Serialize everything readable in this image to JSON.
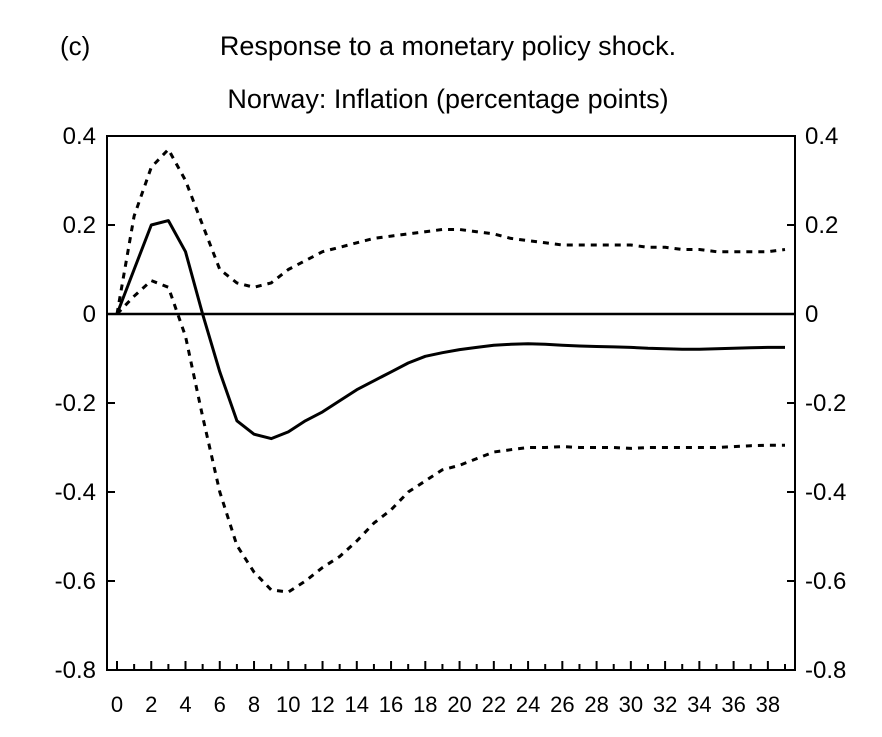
{
  "chart_data": {
    "type": "line",
    "panel_label": "(c)",
    "title": "Response to a monetary policy shock.",
    "subtitle": "Norway: Inflation (percentage points)",
    "xlabel": "",
    "ylabel": "",
    "xlim": [
      0,
      39
    ],
    "ylim": [
      -0.8,
      0.4
    ],
    "x_ticks": [
      0,
      2,
      4,
      6,
      8,
      10,
      12,
      14,
      16,
      18,
      20,
      22,
      24,
      26,
      28,
      30,
      32,
      34,
      36,
      38
    ],
    "x_tick_labels": [
      "0",
      "2",
      "4",
      "6",
      "8",
      "10",
      "12",
      "14",
      "16",
      "18",
      "20",
      "22",
      "24",
      "26",
      "28",
      "30",
      "32",
      "34",
      "36",
      "38"
    ],
    "y_ticks": [
      0.4,
      0.2,
      0,
      -0.2,
      -0.4,
      -0.6,
      -0.8
    ],
    "y_tick_labels": [
      "0.4",
      "0.2",
      "0",
      "-0.2",
      "-0.4",
      "-0.6",
      "-0.8"
    ],
    "grid": false,
    "zero_line": true,
    "series": [
      {
        "style": "solid",
        "color": "#000000",
        "x": [
          0,
          1,
          2,
          3,
          4,
          5,
          6,
          7,
          8,
          9,
          10,
          11,
          12,
          13,
          14,
          15,
          16,
          17,
          18,
          19,
          20,
          21,
          22,
          23,
          24,
          25,
          26,
          27,
          28,
          29,
          30,
          31,
          32,
          33,
          34,
          35,
          36,
          37,
          38,
          39
        ],
        "values": [
          0,
          0.1,
          0.2,
          0.21,
          0.14,
          0.0,
          -0.13,
          -0.24,
          -0.27,
          -0.28,
          -0.265,
          -0.24,
          -0.22,
          -0.195,
          -0.17,
          -0.15,
          -0.13,
          -0.11,
          -0.095,
          -0.087,
          -0.08,
          -0.075,
          -0.07,
          -0.068,
          -0.067,
          -0.068,
          -0.07,
          -0.072,
          -0.073,
          -0.074,
          -0.075,
          -0.077,
          -0.078,
          -0.079,
          -0.079,
          -0.078,
          -0.077,
          -0.076,
          -0.075,
          -0.075
        ]
      },
      {
        "style": "dotted",
        "color": "#000000",
        "x": [
          0,
          1,
          2,
          3,
          4,
          5,
          6,
          7,
          8,
          9,
          10,
          11,
          12,
          13,
          14,
          15,
          16,
          17,
          18,
          19,
          20,
          21,
          22,
          23,
          24,
          25,
          26,
          27,
          28,
          29,
          30,
          31,
          32,
          33,
          34,
          35,
          36,
          37,
          38,
          39
        ],
        "values": [
          0,
          0.22,
          0.33,
          0.37,
          0.3,
          0.2,
          0.1,
          0.07,
          0.06,
          0.07,
          0.1,
          0.12,
          0.14,
          0.15,
          0.16,
          0.17,
          0.175,
          0.18,
          0.185,
          0.19,
          0.19,
          0.185,
          0.18,
          0.17,
          0.165,
          0.16,
          0.155,
          0.155,
          0.155,
          0.155,
          0.155,
          0.15,
          0.15,
          0.145,
          0.145,
          0.14,
          0.14,
          0.14,
          0.14,
          0.145
        ]
      },
      {
        "style": "dotted",
        "color": "#000000",
        "x": [
          0,
          1,
          2,
          3,
          4,
          5,
          6,
          7,
          8,
          9,
          10,
          11,
          12,
          13,
          14,
          15,
          16,
          17,
          18,
          19,
          20,
          21,
          22,
          23,
          24,
          25,
          26,
          27,
          28,
          29,
          30,
          31,
          32,
          33,
          34,
          35,
          36,
          37,
          38,
          39
        ],
        "values": [
          0,
          0.04,
          0.075,
          0.06,
          -0.05,
          -0.23,
          -0.4,
          -0.52,
          -0.58,
          -0.62,
          -0.625,
          -0.6,
          -0.57,
          -0.545,
          -0.51,
          -0.47,
          -0.44,
          -0.4,
          -0.375,
          -0.35,
          -0.34,
          -0.325,
          -0.31,
          -0.305,
          -0.3,
          -0.3,
          -0.298,
          -0.3,
          -0.3,
          -0.3,
          -0.302,
          -0.3,
          -0.3,
          -0.3,
          -0.3,
          -0.3,
          -0.298,
          -0.296,
          -0.295,
          -0.295
        ]
      }
    ]
  }
}
